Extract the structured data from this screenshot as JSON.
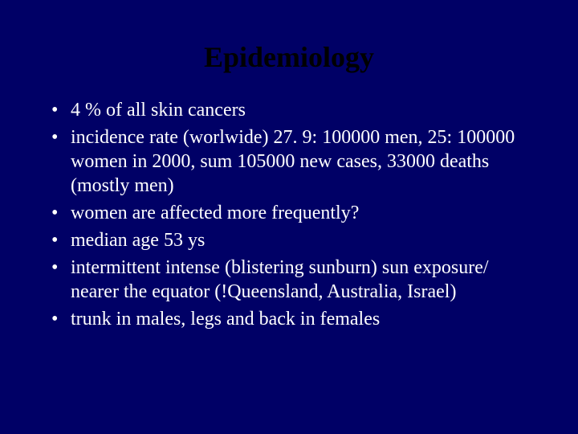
{
  "slide": {
    "background_color": "#000066",
    "title": {
      "text": "Epidemiology",
      "color": "#000000",
      "font_size": 36,
      "font_weight": "bold",
      "font_family": "Times New Roman"
    },
    "bullets": {
      "items": [
        "4 % of all skin cancers",
        "incidence rate (worlwide) 27. 9: 100000 men, 25: 100000 women in 2000, sum 105000 new cases, 33000 deaths (mostly men)",
        "women are affected more frequently?",
        "median age 53 ys",
        "intermittent intense (blistering sunburn) sun exposure/ nearer the equator (!Queensland, Australia, Israel)",
        "trunk in males, legs and back in females"
      ],
      "color": "#ffffff",
      "font_size": 24,
      "font_family": "Times New Roman",
      "bullet_char": "•"
    }
  }
}
